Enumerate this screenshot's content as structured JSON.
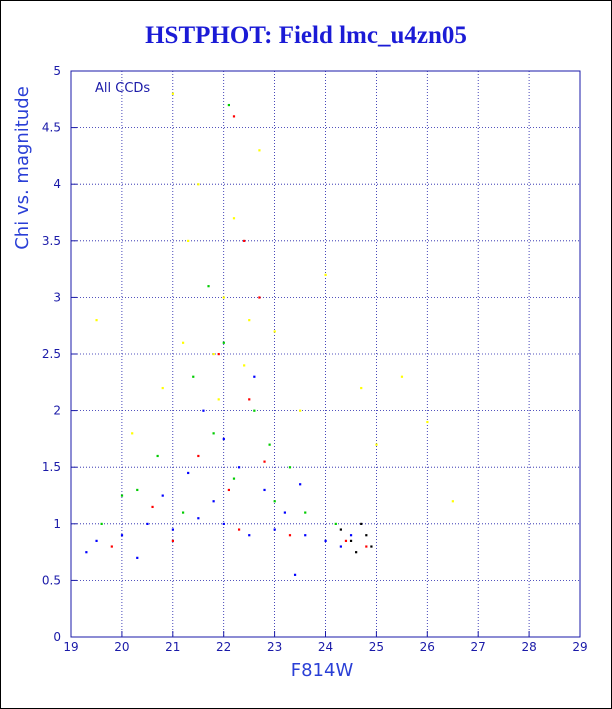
{
  "chart_data": {
    "type": "scatter",
    "title": "HSTPHOT: Field lmc_u4zn05",
    "xlabel": "F814W",
    "ylabel": "Chi vs. magnitude",
    "annotation": "All CCDs",
    "xlim": [
      19,
      29
    ],
    "ylim": [
      0,
      5
    ],
    "x_ticks": [
      "19",
      "20",
      "21",
      "22",
      "23",
      "24",
      "25",
      "26",
      "27",
      "28",
      "29"
    ],
    "y_ticks": [
      "0",
      "0.5",
      "1",
      "1.5",
      "2",
      "2.5",
      "3",
      "3.5",
      "4",
      "4.5",
      "5"
    ],
    "grid": true,
    "series": [
      {
        "color": "#0000ff",
        "values": [
          [
            21.0,
            0.95
          ],
          [
            22.0,
            1.0
          ],
          [
            23.0,
            0.95
          ],
          [
            23.6,
            0.9
          ],
          [
            20.5,
            1.0
          ],
          [
            21.5,
            1.05
          ],
          [
            22.5,
            0.9
          ],
          [
            23.2,
            1.1
          ],
          [
            24.0,
            0.85
          ],
          [
            20.0,
            0.9
          ],
          [
            19.5,
            0.85
          ],
          [
            21.8,
            1.2
          ],
          [
            22.8,
            1.3
          ],
          [
            24.3,
            0.8
          ],
          [
            20.8,
            1.25
          ],
          [
            22.3,
            1.5
          ],
          [
            21.3,
            1.45
          ],
          [
            23.5,
            1.35
          ],
          [
            19.3,
            0.75
          ],
          [
            24.5,
            0.9
          ],
          [
            22.6,
            2.3
          ],
          [
            21.6,
            2.0
          ],
          [
            23.4,
            0.55
          ],
          [
            20.3,
            0.7
          ],
          [
            22.0,
            1.75
          ]
        ]
      },
      {
        "color": "#00cc00",
        "values": [
          [
            21.2,
            1.1
          ],
          [
            22.2,
            1.4
          ],
          [
            23.0,
            1.2
          ],
          [
            20.3,
            1.3
          ],
          [
            21.8,
            1.8
          ],
          [
            22.6,
            2.0
          ],
          [
            23.6,
            1.1
          ],
          [
            19.6,
            1.0
          ],
          [
            24.2,
            1.0
          ],
          [
            22.0,
            2.6
          ],
          [
            21.4,
            2.3
          ],
          [
            22.9,
            1.7
          ],
          [
            20.7,
            1.6
          ],
          [
            22.1,
            4.7
          ],
          [
            21.7,
            3.1
          ],
          [
            23.3,
            1.5
          ],
          [
            20.0,
            1.25
          ]
        ]
      },
      {
        "color": "#ff0000",
        "values": [
          [
            21.0,
            0.85
          ],
          [
            22.3,
            0.95
          ],
          [
            23.3,
            0.9
          ],
          [
            24.4,
            0.85
          ],
          [
            20.6,
            1.15
          ],
          [
            22.1,
            1.3
          ],
          [
            21.5,
            1.6
          ],
          [
            22.8,
            1.55
          ],
          [
            24.8,
            0.8
          ],
          [
            19.8,
            0.8
          ],
          [
            22.5,
            2.1
          ],
          [
            21.9,
            2.5
          ],
          [
            22.7,
            3.0
          ],
          [
            22.4,
            3.5
          ],
          [
            22.2,
            4.6
          ]
        ]
      },
      {
        "color": "#ffff00",
        "values": [
          [
            21.8,
            2.5
          ],
          [
            22.0,
            3.0
          ],
          [
            21.3,
            3.5
          ],
          [
            22.5,
            2.8
          ],
          [
            20.8,
            2.2
          ],
          [
            21.5,
            4.0
          ],
          [
            22.2,
            3.7
          ],
          [
            21.0,
            4.8
          ],
          [
            20.2,
            1.8
          ],
          [
            23.0,
            2.7
          ],
          [
            21.9,
            2.1
          ],
          [
            24.7,
            2.2
          ],
          [
            25.5,
            2.3
          ],
          [
            26.0,
            1.9
          ],
          [
            19.5,
            2.8
          ],
          [
            22.7,
            4.3
          ],
          [
            23.5,
            2.0
          ],
          [
            21.2,
            2.6
          ],
          [
            22.4,
            2.4
          ],
          [
            25.0,
            1.7
          ],
          [
            26.5,
            1.2
          ],
          [
            24.0,
            3.2
          ]
        ]
      },
      {
        "color": "#000000",
        "values": [
          [
            24.5,
            0.85
          ],
          [
            24.8,
            0.9
          ],
          [
            24.6,
            0.75
          ],
          [
            24.9,
            0.8
          ],
          [
            24.3,
            0.95
          ],
          [
            24.7,
            1.0
          ]
        ]
      }
    ]
  }
}
